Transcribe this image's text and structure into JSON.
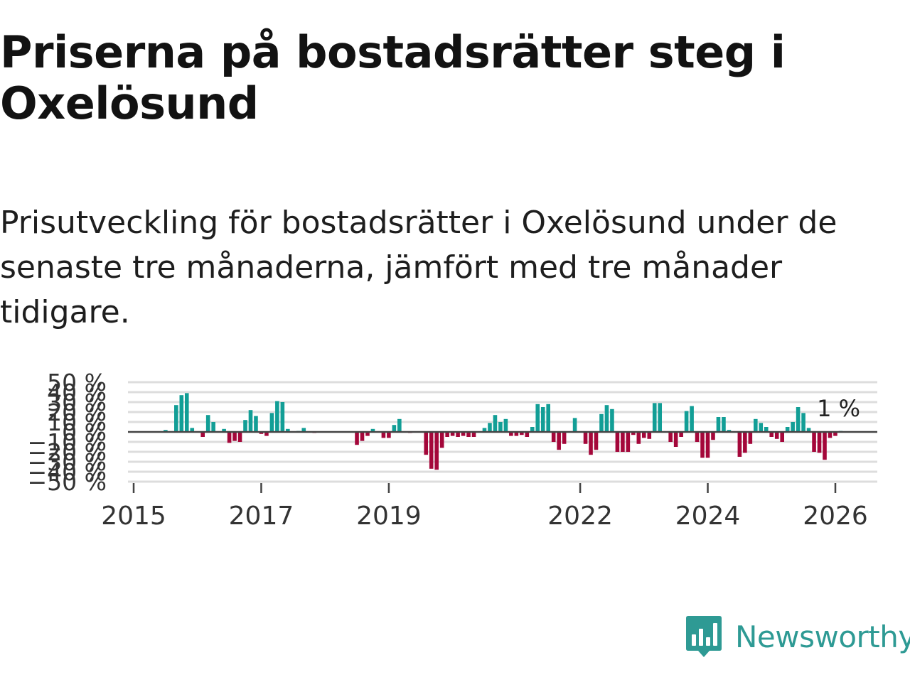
{
  "title": "Priserna på bostadsrätter steg i Oxelösund",
  "subtitle": "Prisutveckling för bostadsrätter i Oxelösund under de senaste tre månaderna, jämfört med tre månader tidigare.",
  "brand": {
    "name": "Newsworthy",
    "icon": "newsworthy-logo-icon",
    "color": "#2e9a94"
  },
  "colors": {
    "positive": "#129e96",
    "negative": "#a4073a",
    "grid": "#dddddd",
    "zero_line": "#444444",
    "text": "#333333"
  },
  "chart_data": {
    "type": "bar",
    "title": "",
    "xlabel": "",
    "ylabel": "",
    "ylim": [
      -50,
      50
    ],
    "y_ticks": [
      -50,
      -40,
      -30,
      -20,
      -10,
      0,
      10,
      20,
      30,
      40,
      50
    ],
    "y_tick_labels": [
      "−50 %",
      "−40 %",
      "−30 %",
      "−20 %",
      "−10 %",
      "0 %",
      "10 %",
      "20 %",
      "30 %",
      "40 %",
      "50 %"
    ],
    "x_ticks": [
      2015,
      2017,
      2019,
      2022,
      2024,
      2026
    ],
    "x_tick_labels": [
      "2015",
      "2017",
      "2019",
      "2022",
      "2024",
      "2026"
    ],
    "x_start": 2015.0,
    "step": 0.08333,
    "last_value_label": "1 %",
    "values": [
      0,
      0,
      0,
      0,
      0,
      0,
      2,
      0,
      27,
      37,
      39,
      4,
      0,
      -5,
      17,
      10,
      0,
      3,
      -11,
      -9,
      -10,
      12,
      22,
      16,
      -2,
      -4,
      19,
      31,
      30,
      3,
      0,
      1,
      4,
      0,
      -1,
      0,
      0,
      0,
      0,
      0,
      0,
      0,
      -13,
      -9,
      -4,
      3,
      0,
      -6,
      -6,
      7,
      13,
      0,
      -1,
      0,
      0,
      -23,
      -37,
      -38,
      -16,
      -5,
      -4,
      -5,
      -4,
      -5,
      -5,
      0,
      4,
      9,
      17,
      10,
      13,
      -4,
      -4,
      -3,
      -5,
      5,
      28,
      25,
      28,
      -10,
      -18,
      -12,
      0,
      14,
      0,
      -12,
      -23,
      -18,
      18,
      27,
      23,
      -20,
      -20,
      -20,
      -3,
      -12,
      -6,
      -7,
      29,
      29,
      0,
      -10,
      -15,
      -5,
      21,
      26,
      -10,
      -26,
      -26,
      -8,
      15,
      15,
      2,
      0,
      -25,
      -21,
      -12,
      13,
      9,
      5,
      -5,
      -7,
      -10,
      5,
      10,
      25,
      19,
      4,
      -20,
      -21,
      -28,
      -6,
      -4,
      1
    ]
  }
}
